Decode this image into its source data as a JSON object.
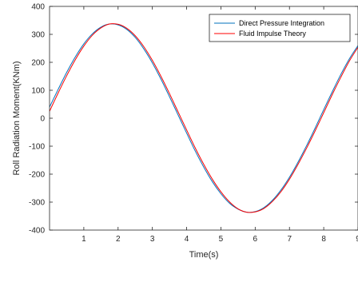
{
  "chart_data": {
    "type": "line",
    "title": "",
    "xlabel": "Time(s)",
    "ylabel": "Roll Radiation Moment(KNm)",
    "xlim": [
      0,
      9
    ],
    "ylim": [
      -400,
      400
    ],
    "xticks": [
      1,
      2,
      3,
      4,
      5,
      6,
      7,
      8,
      9
    ],
    "yticks": [
      -400,
      -300,
      -200,
      -100,
      0,
      100,
      200,
      300,
      400
    ],
    "grid": false,
    "legend_position": "top-right",
    "series": [
      {
        "name": "Direct Pressure Integration",
        "color": "#0072BD",
        "x": [
          0,
          0.25,
          0.5,
          0.75,
          1,
          1.25,
          1.5,
          1.75,
          2,
          2.25,
          2.5,
          2.75,
          3,
          3.25,
          3.5,
          3.75,
          4,
          4.25,
          4.5,
          4.75,
          5,
          5.25,
          5.5,
          5.75,
          6,
          6.25,
          6.5,
          6.75,
          7,
          7.25,
          7.5,
          7.75,
          8,
          8.25,
          8.5,
          8.75,
          9
        ],
        "y": [
          40,
          103,
          164,
          219,
          266,
          302,
          326,
          337,
          334,
          318,
          289,
          248,
          198,
          140,
          77,
          12,
          -53,
          -117,
          -175,
          -227,
          -270,
          -304,
          -325,
          -336,
          -334,
          -320,
          -294,
          -257,
          -211,
          -157,
          -98,
          -35,
          31,
          95,
          157,
          213,
          260
        ]
      },
      {
        "name": "Fluid Impulse Theory",
        "color": "#FF0000",
        "x": [
          0,
          0.25,
          0.5,
          0.75,
          1,
          1.25,
          1.5,
          1.75,
          2,
          2.25,
          2.5,
          2.75,
          3,
          3.25,
          3.5,
          3.75,
          4,
          4.25,
          4.5,
          4.75,
          5,
          5.25,
          5.5,
          5.75,
          6,
          6.25,
          6.5,
          6.75,
          7,
          7.25,
          7.5,
          7.75,
          8,
          8.25,
          8.5,
          8.75,
          9
        ],
        "y": [
          25,
          90,
          152,
          209,
          258,
          297,
          323,
          337,
          336,
          322,
          295,
          256,
          207,
          150,
          88,
          23,
          -42,
          -106,
          -165,
          -218,
          -263,
          -299,
          -324,
          -336,
          -335,
          -323,
          -298,
          -263,
          -218,
          -165,
          -107,
          -45,
          20,
          85,
          147,
          205,
          254
        ]
      }
    ]
  }
}
